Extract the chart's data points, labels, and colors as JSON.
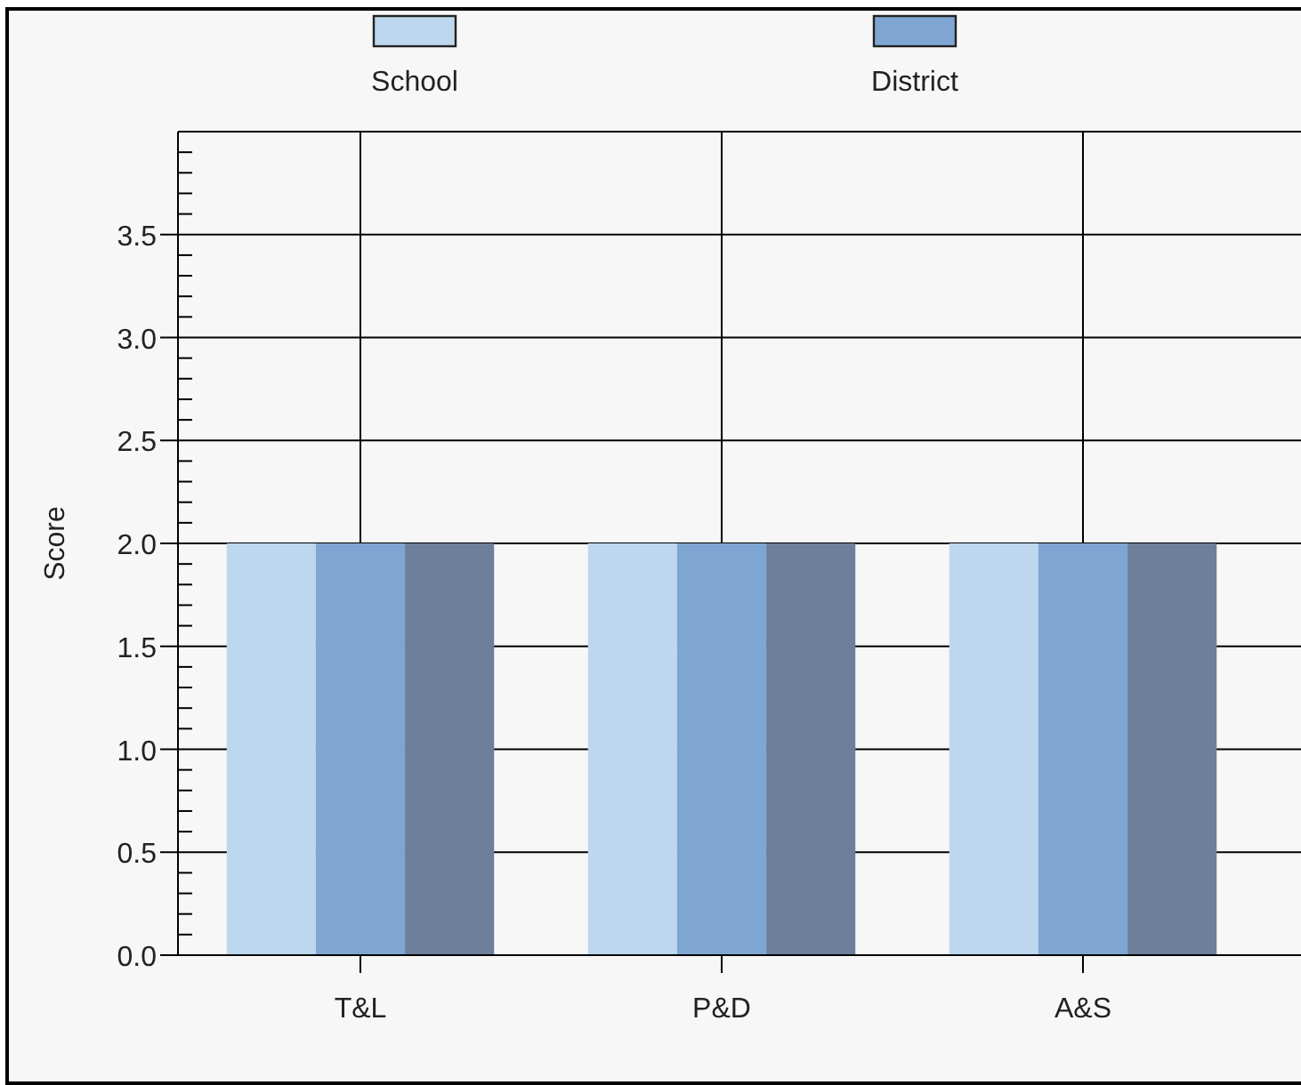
{
  "chart_data": {
    "type": "bar",
    "ylabel": "Score",
    "categories": [
      "T&L",
      "P&D",
      "A&S"
    ],
    "series": [
      {
        "name": "School",
        "color": "#bdd7ee",
        "values": [
          2.0,
          2.0,
          2.0
        ]
      },
      {
        "name": "District",
        "color": "#7fa6d2",
        "values": [
          2.0,
          2.0,
          2.0
        ]
      },
      {
        "color": "#6e7f9a",
        "values": [
          2.0,
          2.0,
          2.0
        ]
      }
    ],
    "ylim": [
      0,
      4
    ],
    "yticks": [
      {
        "value": 0,
        "label": "0.0"
      },
      {
        "value": 0.1,
        "label": null
      },
      {
        "value": 0.2,
        "label": null
      },
      {
        "value": 0.3,
        "label": null
      },
      {
        "value": 0.4,
        "label": null
      },
      {
        "value": 0.5,
        "label": "0.5"
      },
      {
        "value": 0.6,
        "label": null
      },
      {
        "value": 0.7,
        "label": null
      },
      {
        "value": 0.8,
        "label": null
      },
      {
        "value": 0.9,
        "label": null
      },
      {
        "value": 1,
        "label": "1.0"
      },
      {
        "value": 1.1,
        "label": null
      },
      {
        "value": 1.2,
        "label": null
      },
      {
        "value": 1.3,
        "label": null
      },
      {
        "value": 1.4,
        "label": null
      },
      {
        "value": 1.5,
        "label": "1.5"
      },
      {
        "value": 1.6,
        "label": null
      },
      {
        "value": 1.7,
        "label": null
      },
      {
        "value": 1.8,
        "label": null
      },
      {
        "value": 1.9,
        "label": null
      },
      {
        "value": 2,
        "label": "2.0"
      },
      {
        "value": 2.1,
        "label": null
      },
      {
        "value": 2.2,
        "label": null
      },
      {
        "value": 2.3,
        "label": null
      },
      {
        "value": 2.4,
        "label": null
      },
      {
        "value": 2.5,
        "label": "2.5"
      },
      {
        "value": 2.6,
        "label": null
      },
      {
        "value": 2.7,
        "label": null
      },
      {
        "value": 2.8,
        "label": null
      },
      {
        "value": 2.9,
        "label": null
      },
      {
        "value": 3,
        "label": "3.0"
      },
      {
        "value": 3.1,
        "label": null
      },
      {
        "value": 3.2,
        "label": null
      },
      {
        "value": 3.3,
        "label": null
      },
      {
        "value": 3.4,
        "label": null
      },
      {
        "value": 3.5,
        "label": "3.5"
      },
      {
        "value": 3.6,
        "label": null
      },
      {
        "value": 3.7,
        "label": null
      },
      {
        "value": 3.8,
        "label": null
      },
      {
        "value": 3.9,
        "label": null
      }
    ],
    "grid": true,
    "legend": "top"
  }
}
